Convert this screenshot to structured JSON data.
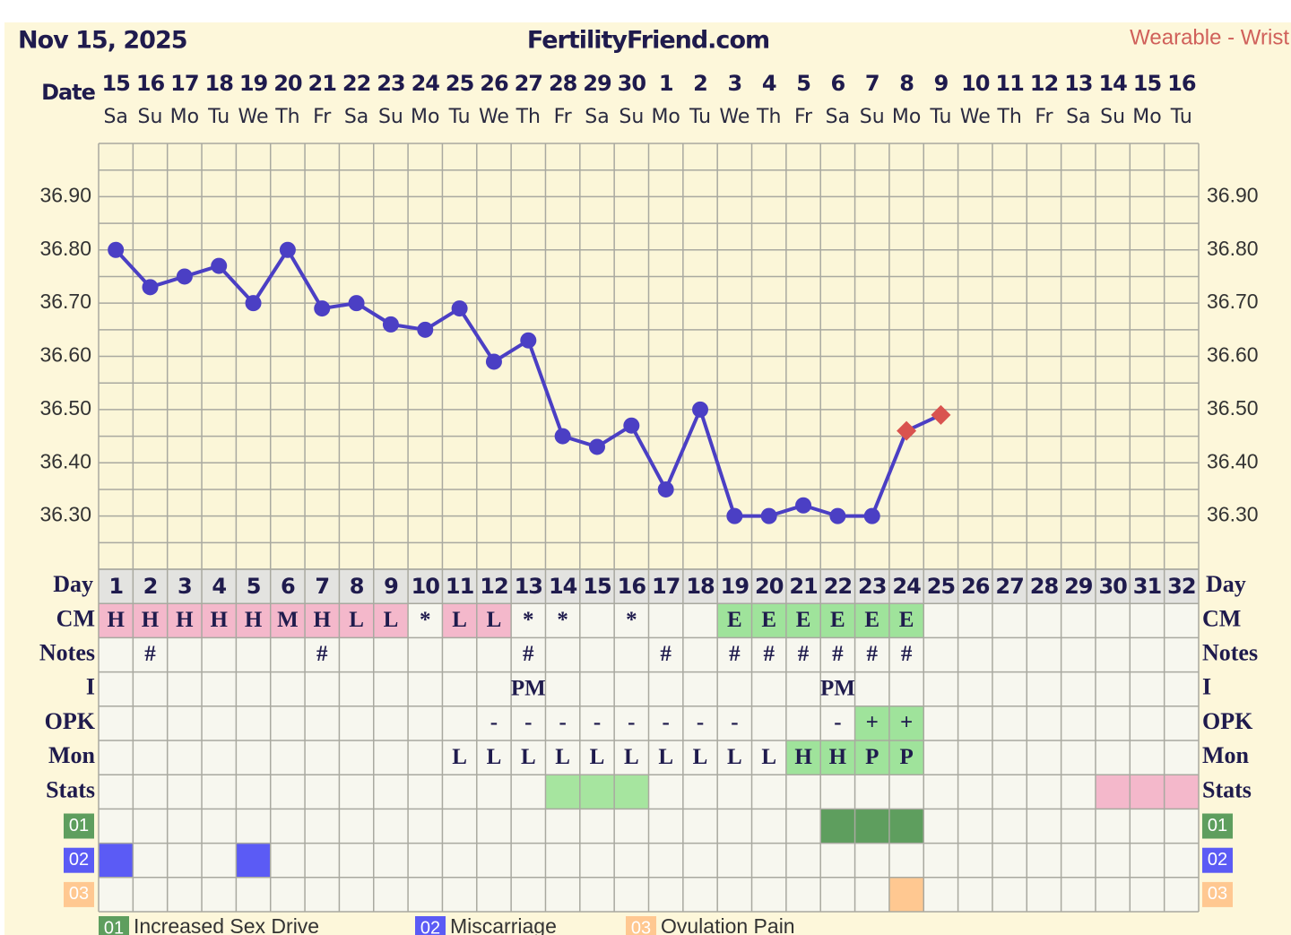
{
  "header": {
    "date": "Nov 15, 2025",
    "site": "FertilityFriend.com",
    "source": "Wearable - Wrist"
  },
  "chart_data": {
    "type": "line",
    "date_label": "Date",
    "dates": [
      15,
      16,
      17,
      18,
      19,
      20,
      21,
      22,
      23,
      24,
      25,
      26,
      27,
      28,
      29,
      30,
      1,
      2,
      3,
      4,
      5,
      6,
      7,
      8,
      9,
      10,
      11,
      12,
      13,
      14,
      15,
      16
    ],
    "weekdays": [
      "Sa",
      "Su",
      "Mo",
      "Tu",
      "We",
      "Th",
      "Fr",
      "Sa",
      "Su",
      "Mo",
      "Tu",
      "We",
      "Th",
      "Fr",
      "Sa",
      "Su",
      "Mo",
      "Tu",
      "We",
      "Th",
      "Fr",
      "Sa",
      "Su",
      "Mo",
      "Tu",
      "We",
      "Th",
      "Fr",
      "Sa",
      "Su",
      "Mo",
      "Tu"
    ],
    "ylim": [
      36.2,
      37.0
    ],
    "yticks": [
      {
        "value": 36.3,
        "label": "36.30"
      },
      {
        "value": 36.4,
        "label": "36.40"
      },
      {
        "value": 36.5,
        "label": "36.50"
      },
      {
        "value": 36.6,
        "label": "36.60"
      },
      {
        "value": 36.7,
        "label": "36.70"
      },
      {
        "value": 36.8,
        "label": "36.80"
      },
      {
        "value": 36.9,
        "label": "36.90"
      }
    ],
    "minor_yticks": [
      36.2,
      36.25,
      36.35,
      36.45,
      36.55,
      36.65,
      36.75,
      36.85,
      36.95,
      37.0
    ],
    "grid": true,
    "series": [
      {
        "color": "#4b3fc4",
        "diamond_color": "#d9534f",
        "values": [
          36.8,
          36.73,
          36.75,
          36.77,
          36.7,
          36.8,
          36.69,
          36.7,
          36.66,
          36.65,
          36.69,
          36.59,
          36.63,
          36.45,
          36.43,
          36.47,
          36.35,
          36.5,
          36.3,
          36.3,
          36.32,
          36.3,
          36.3,
          36.46,
          36.49,
          null,
          null,
          null,
          null,
          null,
          null,
          null
        ],
        "markers": [
          "circle",
          "circle",
          "circle",
          "circle",
          "circle",
          "circle",
          "circle",
          "circle",
          "circle",
          "circle",
          "circle",
          "circle",
          "circle",
          "circle",
          "circle",
          "circle",
          "circle",
          "circle",
          "circle",
          "circle",
          "circle",
          "circle",
          "circle",
          "diamond",
          "diamond",
          null,
          null,
          null,
          null,
          null,
          null,
          null
        ]
      }
    ]
  },
  "table": {
    "day_label": "Day",
    "days": [
      1,
      2,
      3,
      4,
      5,
      6,
      7,
      8,
      9,
      10,
      11,
      12,
      13,
      14,
      15,
      16,
      17,
      18,
      19,
      20,
      21,
      22,
      23,
      24,
      25,
      26,
      27,
      28,
      29,
      30,
      31,
      32
    ],
    "rows": [
      {
        "label": "CM",
        "cells": [
          "H",
          "H",
          "H",
          "H",
          "H",
          "M",
          "H",
          "L",
          "L",
          "*",
          "L",
          "L",
          "*",
          "*",
          null,
          "*",
          null,
          null,
          "E",
          "E",
          "E",
          "E",
          "E",
          "E",
          null,
          null,
          null,
          null,
          null,
          null,
          null,
          null
        ],
        "fills": [
          "#f4b8cb",
          "#f4b8cb",
          "#f4b8cb",
          "#f4b8cb",
          "#f4b8cb",
          "#f4b8cb",
          "#f4b8cb",
          "#f4b8cb",
          "#f4b8cb",
          null,
          "#f4b8cb",
          "#f4b8cb",
          null,
          null,
          null,
          null,
          null,
          null,
          "#9fe39b",
          "#9fe39b",
          "#9fe39b",
          "#9fe39b",
          "#9fe39b",
          "#9fe39b",
          null,
          null,
          null,
          null,
          null,
          null,
          null,
          null
        ]
      },
      {
        "label": "Notes",
        "cells": [
          null,
          "#",
          null,
          null,
          null,
          null,
          "#",
          null,
          null,
          null,
          null,
          null,
          "#",
          null,
          null,
          null,
          "#",
          null,
          "#",
          "#",
          "#",
          "#",
          "#",
          "#",
          null,
          null,
          null,
          null,
          null,
          null,
          null,
          null
        ]
      },
      {
        "label": "I",
        "cells": [
          null,
          null,
          null,
          null,
          null,
          null,
          null,
          null,
          null,
          null,
          null,
          null,
          "PM",
          null,
          null,
          null,
          null,
          null,
          null,
          null,
          null,
          "PM",
          null,
          null,
          null,
          null,
          null,
          null,
          null,
          null,
          null,
          null
        ]
      },
      {
        "label": "OPK",
        "cells": [
          null,
          null,
          null,
          null,
          null,
          null,
          null,
          null,
          null,
          null,
          null,
          "-",
          "-",
          "-",
          "-",
          "-",
          "-",
          "-",
          "-",
          null,
          null,
          "-",
          "+",
          "+",
          null,
          null,
          null,
          null,
          null,
          null,
          null,
          null
        ],
        "fills": [
          null,
          null,
          null,
          null,
          null,
          null,
          null,
          null,
          null,
          null,
          null,
          null,
          null,
          null,
          null,
          null,
          null,
          null,
          null,
          null,
          null,
          null,
          "#9fe39b",
          "#9fe39b",
          null,
          null,
          null,
          null,
          null,
          null,
          null,
          null
        ]
      },
      {
        "label": "Mon",
        "cells": [
          null,
          null,
          null,
          null,
          null,
          null,
          null,
          null,
          null,
          null,
          "L",
          "L",
          "L",
          "L",
          "L",
          "L",
          "L",
          "L",
          "L",
          "L",
          "H",
          "H",
          "P",
          "P",
          null,
          null,
          null,
          null,
          null,
          null,
          null,
          null
        ],
        "fills": [
          null,
          null,
          null,
          null,
          null,
          null,
          null,
          null,
          null,
          null,
          null,
          null,
          null,
          null,
          null,
          null,
          null,
          null,
          null,
          null,
          "#9fe39b",
          "#9fe39b",
          "#9fe39b",
          "#9fe39b",
          null,
          null,
          null,
          null,
          null,
          null,
          null,
          null
        ]
      },
      {
        "label": "Stats",
        "fills": [
          null,
          null,
          null,
          null,
          null,
          null,
          null,
          null,
          null,
          null,
          null,
          null,
          null,
          "#a6e59f",
          "#a6e59f",
          "#a6e59f",
          null,
          null,
          null,
          null,
          null,
          null,
          null,
          null,
          null,
          null,
          null,
          null,
          null,
          "#f4b8cb",
          "#f4b8cb",
          "#f4b8cb"
        ]
      },
      {
        "label": "01",
        "badge": "#5e9e5e",
        "fills": [
          null,
          null,
          null,
          null,
          null,
          null,
          null,
          null,
          null,
          null,
          null,
          null,
          null,
          null,
          null,
          null,
          null,
          null,
          null,
          null,
          null,
          "#5e9e5e",
          "#5e9e5e",
          "#5e9e5e",
          null,
          null,
          null,
          null,
          null,
          null,
          null,
          null
        ]
      },
      {
        "label": "02",
        "badge": "#5b5bf5",
        "fills": [
          "#5b5bf5",
          null,
          null,
          null,
          "#5b5bf5",
          null,
          null,
          null,
          null,
          null,
          null,
          null,
          null,
          null,
          null,
          null,
          null,
          null,
          null,
          null,
          null,
          null,
          null,
          null,
          null,
          null,
          null,
          null,
          null,
          null,
          null,
          null
        ]
      },
      {
        "label": "03",
        "badge": "#ffc891",
        "fills": [
          null,
          null,
          null,
          null,
          null,
          null,
          null,
          null,
          null,
          null,
          null,
          null,
          null,
          null,
          null,
          null,
          null,
          null,
          null,
          null,
          null,
          null,
          null,
          "#ffc891",
          null,
          null,
          null,
          null,
          null,
          null,
          null,
          null
        ]
      }
    ]
  },
  "legend": [
    {
      "code": "01",
      "text": "Increased Sex Drive",
      "color": "#5e9e5e"
    },
    {
      "code": "02",
      "text": "Miscarriage",
      "color": "#5b5bf5"
    },
    {
      "code": "03",
      "text": "Ovulation Pain",
      "color": "#ffc891"
    }
  ]
}
